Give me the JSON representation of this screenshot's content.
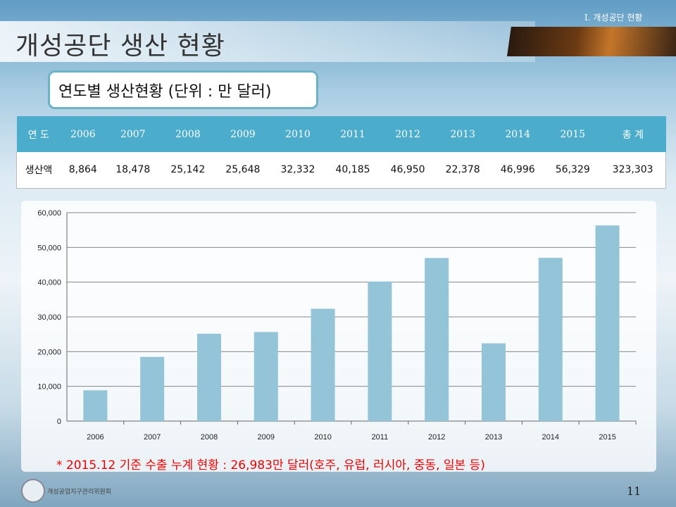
{
  "header": {
    "title": "개성공단 생산 현황",
    "section": "Ⅰ. 개성공단 현황"
  },
  "subtitle": "연도별 생산현황  (단위 : 만 달러)",
  "table": {
    "headers": [
      "연 도",
      "2006",
      "2007",
      "2008",
      "2009",
      "2010",
      "2011",
      "2012",
      "2013",
      "2014",
      "2015",
      "총 계"
    ],
    "row": [
      "생산액",
      "8,864",
      "18,478",
      "25,142",
      "25,648",
      "32,332",
      "40,185",
      "46,950",
      "22,378",
      "46,996",
      "56,329",
      "323,303"
    ]
  },
  "chart_data": {
    "type": "bar",
    "categories": [
      "2006",
      "2007",
      "2008",
      "2009",
      "2010",
      "2011",
      "2012",
      "2013",
      "2014",
      "2015"
    ],
    "values": [
      8864,
      18478,
      25142,
      25648,
      32332,
      40185,
      46950,
      22378,
      46996,
      56329
    ],
    "yticks": [
      "0",
      "10,000",
      "20,000",
      "30,000",
      "40,000",
      "50,000",
      "60,000"
    ],
    "ylim": [
      0,
      60000
    ],
    "grid": true,
    "bar_color": "#93c4d8"
  },
  "note": "* 2015.12  기준 수출 누계 현황 : 26,983만 달러(호주, 유럽, 러시아, 중동, 일본 등)",
  "logo_text": "개성공업지구관리위원회",
  "page_number": "11"
}
